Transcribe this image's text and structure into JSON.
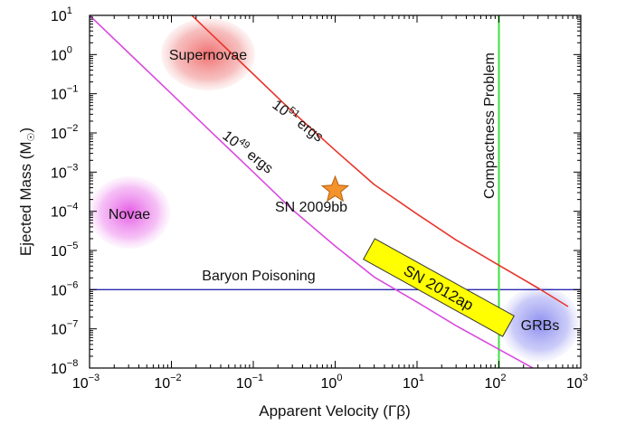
{
  "chart_data": {
    "type": "line",
    "xscale": "log",
    "yscale": "log",
    "xlim": [
      0.001,
      1000
    ],
    "ylim": [
      1e-08,
      10
    ],
    "xlabel": "Apparent Velocity (Γβ)",
    "ylabel": "Ejected Mass (M",
    "ylabel_sub": "☉",
    "ylabel_close": ")",
    "x_ticks": [
      {
        "value": 0.001,
        "base": "10",
        "exp": "−3"
      },
      {
        "value": 0.01,
        "base": "10",
        "exp": "−2"
      },
      {
        "value": 0.1,
        "base": "10",
        "exp": "−1"
      },
      {
        "value": 1,
        "base": "10",
        "exp": "0"
      },
      {
        "value": 10,
        "base": "10",
        "exp": "1"
      },
      {
        "value": 100,
        "base": "10",
        "exp": "2"
      },
      {
        "value": 1000,
        "base": "10",
        "exp": "3"
      }
    ],
    "y_ticks": [
      {
        "value": 1e-08,
        "base": "10",
        "exp": "−8"
      },
      {
        "value": 1e-07,
        "base": "10",
        "exp": "−7"
      },
      {
        "value": 1e-06,
        "base": "10",
        "exp": "−6"
      },
      {
        "value": 1e-05,
        "base": "10",
        "exp": "−5"
      },
      {
        "value": 0.0001,
        "base": "10",
        "exp": "−4"
      },
      {
        "value": 0.001,
        "base": "10",
        "exp": "−3"
      },
      {
        "value": 0.01,
        "base": "10",
        "exp": "−2"
      },
      {
        "value": 0.1,
        "base": "10",
        "exp": "−1"
      },
      {
        "value": 1,
        "base": "10",
        "exp": "0"
      },
      {
        "value": 10,
        "base": "10",
        "exp": "1"
      }
    ],
    "series": [
      {
        "name": "10^51 ergs",
        "label_base": "10",
        "label_exp": "51",
        "label_suffix": " ergs",
        "color": "#e8352b",
        "x": [
          0.01,
          0.03,
          0.1,
          0.3,
          1,
          3,
          10,
          30,
          100,
          300,
          700
        ],
        "y": [
          31.6,
          3.5,
          0.316,
          0.035,
          0.0036,
          0.00048,
          8.5e-05,
          1.85e-05,
          4.2e-06,
          1.1e-06,
          3.7e-07
        ]
      },
      {
        "name": "10^49 ergs",
        "label_base": "10",
        "label_exp": "49",
        "label_suffix": " ergs",
        "color": "#d94adf",
        "x": [
          0.001,
          0.003,
          0.01,
          0.03,
          0.1,
          0.3,
          1,
          3,
          10,
          30,
          100,
          300
        ],
        "y": [
          10,
          1.1,
          0.1,
          0.011,
          0.001,
          0.00011,
          1.3e-05,
          2.1e-06,
          4.8e-07,
          1.2e-07,
          3e-08,
          8.5e-09
        ]
      }
    ],
    "reference_lines": [
      {
        "orientation": "horizontal",
        "value": 1e-06,
        "label": "Baryon Poisoning",
        "color": "#2a2ab0"
      },
      {
        "orientation": "vertical",
        "value": 100,
        "label": "Compactness Problem",
        "color": "#3ee03e"
      }
    ],
    "regions": [
      {
        "label": "Supernovae",
        "x": 0.03,
        "y": 1.0,
        "color": "#ee6a6a"
      },
      {
        "label": "Novae",
        "x": 0.0035,
        "y": 0.0001,
        "color": "#ea5fea"
      },
      {
        "label": "GRBs",
        "x": 300,
        "y": 2e-07,
        "color": "#8f90f2"
      }
    ],
    "points": [
      {
        "label": "SN 2009bb",
        "x": 1.0,
        "y": 0.00035,
        "marker": "star",
        "color": "#f4922c"
      }
    ],
    "boxes": [
      {
        "label": "SN 2012ap",
        "x_range": [
          2.5,
          40
        ],
        "y_range": [
          5e-07,
          1.5e-06
        ],
        "color": "#ffff00"
      }
    ]
  }
}
